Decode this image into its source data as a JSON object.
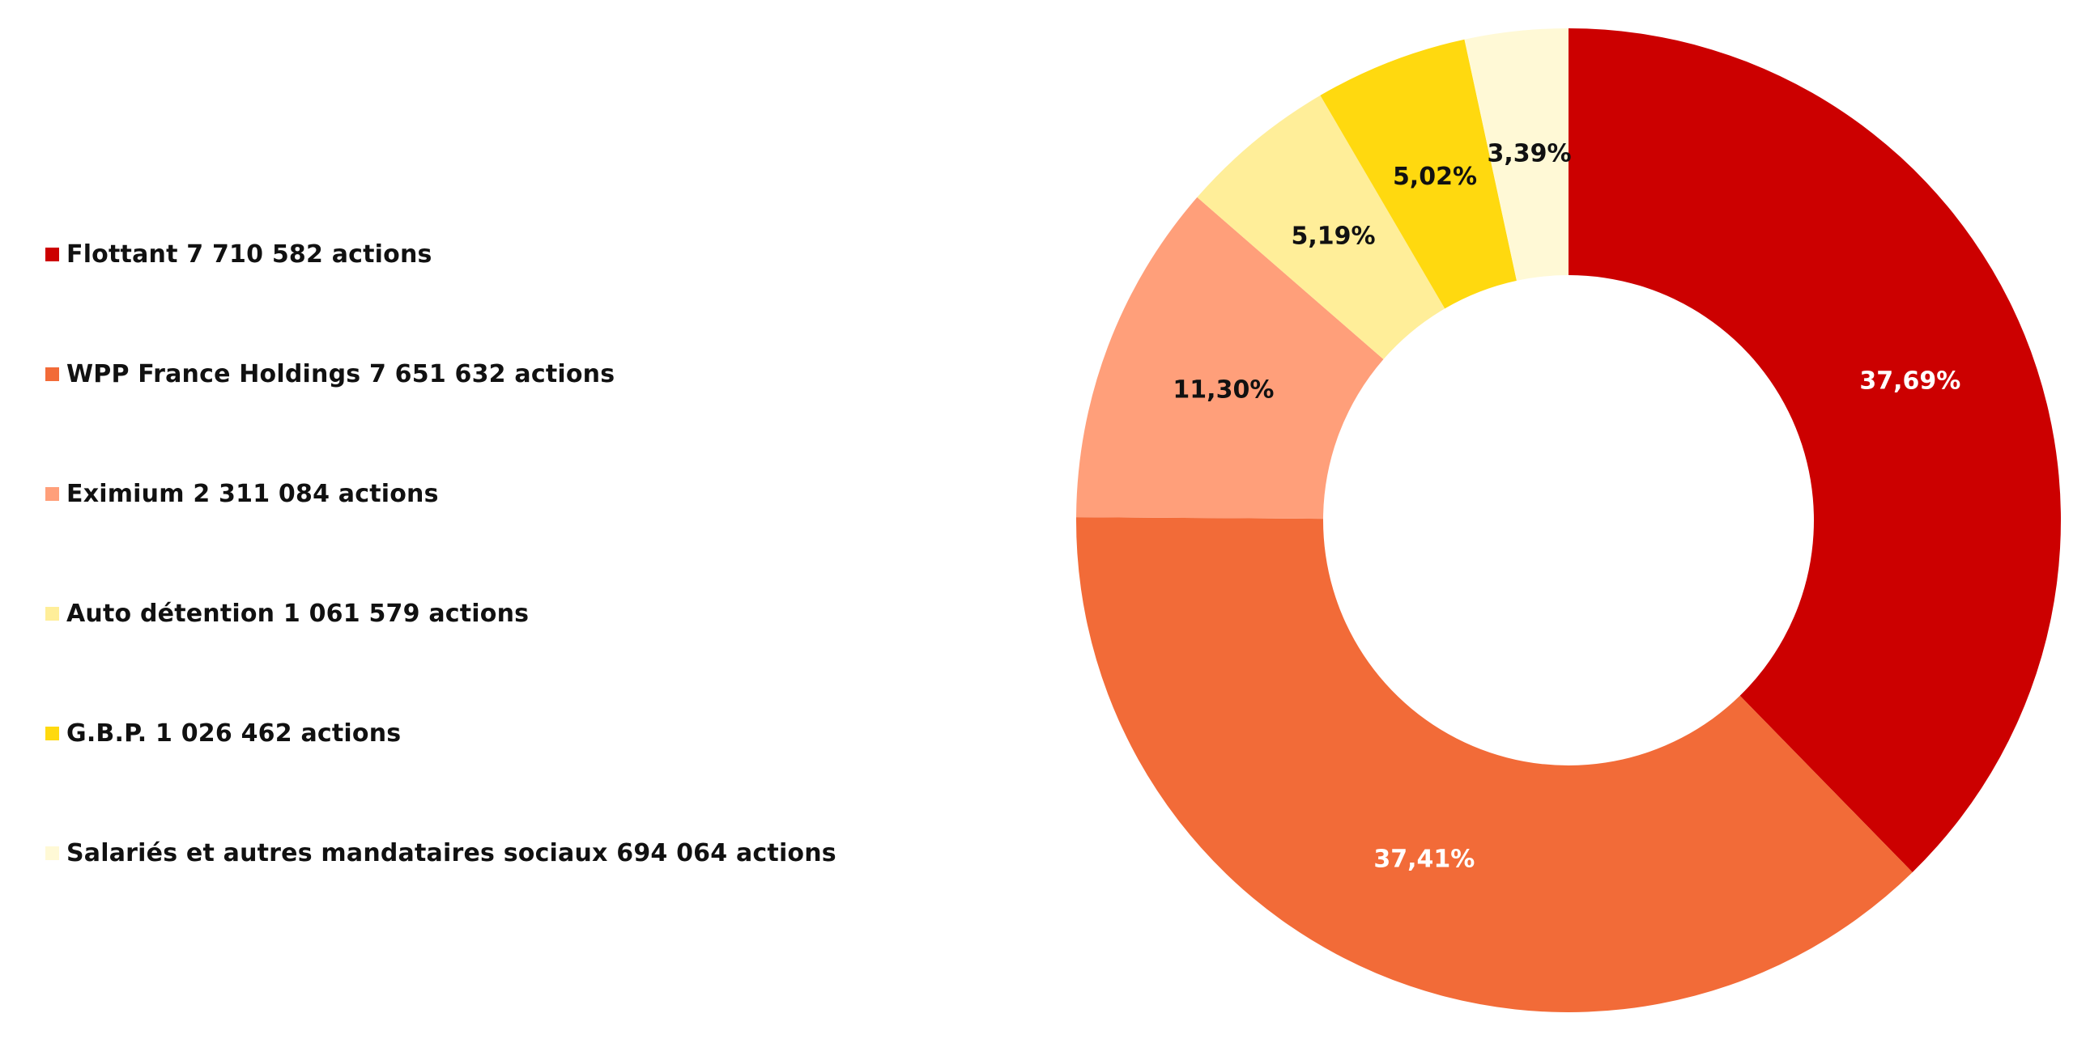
{
  "chart_data": {
    "type": "pie",
    "variant": "donut",
    "legend_position": "left",
    "slices": [
      {
        "legend": "Flottant 7 710 582 actions",
        "value": 37.69,
        "label": "37,69%",
        "color": "#CC0000",
        "label_color": "#FFFFFF"
      },
      {
        "legend": "WPP France Holdings 7 651 632 actions",
        "value": 37.41,
        "label": "37,41%",
        "color": "#F26B38",
        "label_color": "#FFFFFF"
      },
      {
        "legend": "Eximium 2 311 084 actions",
        "value": 11.3,
        "label": "11,30%",
        "color": "#FF9F7A",
        "label_color": "#111111"
      },
      {
        "legend": "Auto détention 1 061 579 actions",
        "value": 5.19,
        "label": "5,19%",
        "color": "#FFEE99",
        "label_color": "#111111"
      },
      {
        "legend": "G.B.P. 1 026 462 actions",
        "value": 5.02,
        "label": "5,02%",
        "color": "#FFD90F",
        "label_color": "#111111"
      },
      {
        "legend": "Salariés et autres mandataires sociaux 694 064 actions",
        "value": 3.39,
        "label": "3,39%",
        "color": "#FFF9D6",
        "label_color": "#111111"
      }
    ]
  }
}
